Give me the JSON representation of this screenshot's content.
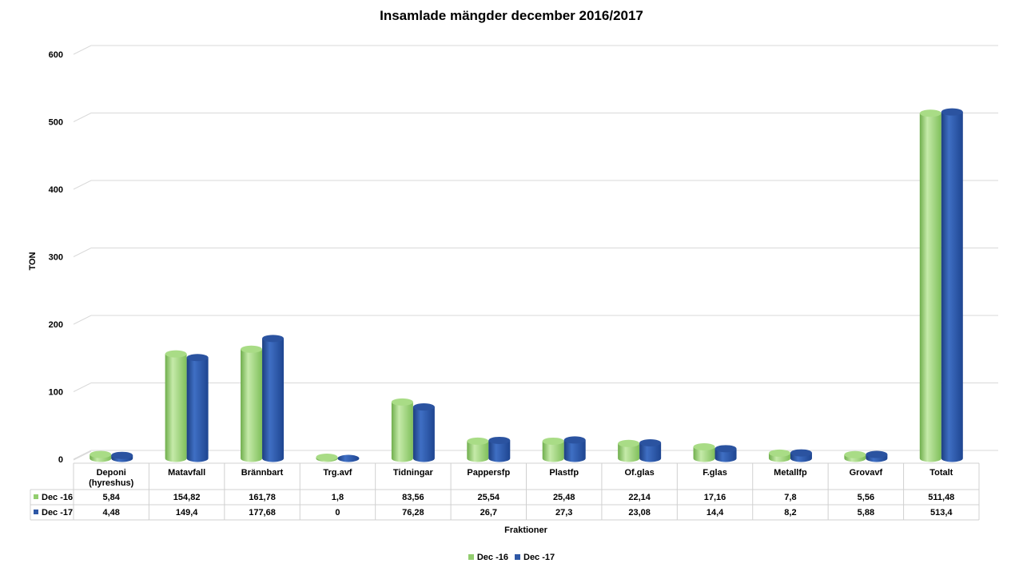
{
  "chart_data": {
    "type": "bar",
    "title": "Insamlade mängder december 2016/2017",
    "ylabel": "TON",
    "xlabel": "Fraktioner",
    "ylim": [
      0,
      600
    ],
    "yticks": [
      "0",
      "100",
      "200",
      "300",
      "400",
      "500",
      "600"
    ],
    "grid": true,
    "legend_position": "bottom",
    "categories": [
      "Deponi (hyreshus)",
      "Matavfall",
      "Brännbart",
      "Trg.avf",
      "Tidningar",
      "Pappersfp",
      "Plastfp",
      "Of.glas",
      "F.glas",
      "Metallfp",
      "Grovavf",
      "Totalt"
    ],
    "category_lines": [
      [
        "Deponi",
        "(hyreshus)"
      ],
      [
        "Matavfall"
      ],
      [
        "Brännbart"
      ],
      [
        "Trg.avf"
      ],
      [
        "Tidningar"
      ],
      [
        "Pappersfp"
      ],
      [
        "Plastfp"
      ],
      [
        "Of.glas"
      ],
      [
        "F.glas"
      ],
      [
        "Metallfp"
      ],
      [
        "Grovavf"
      ],
      [
        "Totalt"
      ]
    ],
    "series": [
      {
        "name": "Dec -16",
        "color": "#92cd6e",
        "values": [
          5.84,
          154.82,
          161.78,
          1.8,
          83.56,
          25.54,
          25.48,
          22.14,
          17.16,
          7.8,
          5.56,
          511.48
        ],
        "labels": [
          "5,84",
          "154,82",
          "161,78",
          "1,8",
          "83,56",
          "25,54",
          "25,48",
          "22,14",
          "17,16",
          "7,8",
          "5,56",
          "511,48"
        ]
      },
      {
        "name": "Dec -17",
        "color": "#2e58a6",
        "values": [
          4.48,
          149.4,
          177.68,
          0,
          76.28,
          26.7,
          27.3,
          23.08,
          14.4,
          8.2,
          5.88,
          513.4
        ],
        "labels": [
          "4,48",
          "149,4",
          "177,68",
          "0",
          "76,28",
          "26,7",
          "27,3",
          "23,08",
          "14,4",
          "8,2",
          "5,88",
          "513,4"
        ]
      }
    ]
  }
}
